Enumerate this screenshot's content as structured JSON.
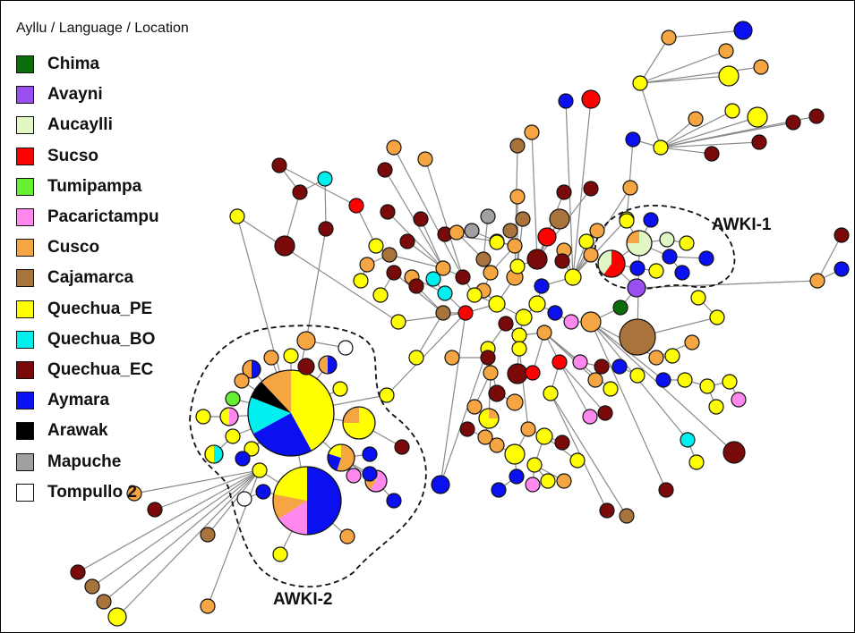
{
  "legend": {
    "title": "Ayllu / Language / Location",
    "items": [
      {
        "label": "Chima",
        "color": "#0b6e0b"
      },
      {
        "label": "Avayni",
        "color": "#9b4ff0"
      },
      {
        "label": "Aucaylli",
        "color": "#e1f7c3"
      },
      {
        "label": "Sucso",
        "color": "#ff0000"
      },
      {
        "label": "Tumipampa",
        "color": "#66ee33"
      },
      {
        "label": "Pacarictampu",
        "color": "#ff88ee"
      },
      {
        "label": "Cusco",
        "color": "#f5a542"
      },
      {
        "label": "Cajamarca",
        "color": "#a8743c"
      },
      {
        "label": "Quechua_PE",
        "color": "#ffff00"
      },
      {
        "label": "Quechua_BO",
        "color": "#00f0f0"
      },
      {
        "label": "Quechua_EC",
        "color": "#7a0a0a"
      },
      {
        "label": "Aymara",
        "color": "#0a10f0"
      },
      {
        "label": "Arawak",
        "color": "#000000"
      },
      {
        "label": "Mapuche",
        "color": "#a0a0a0"
      },
      {
        "label": "Tompullo 2",
        "color": "#ffffff"
      }
    ]
  },
  "clusters": {
    "awki1": "AWKI-1",
    "awki2": "AWKI-2"
  }
}
